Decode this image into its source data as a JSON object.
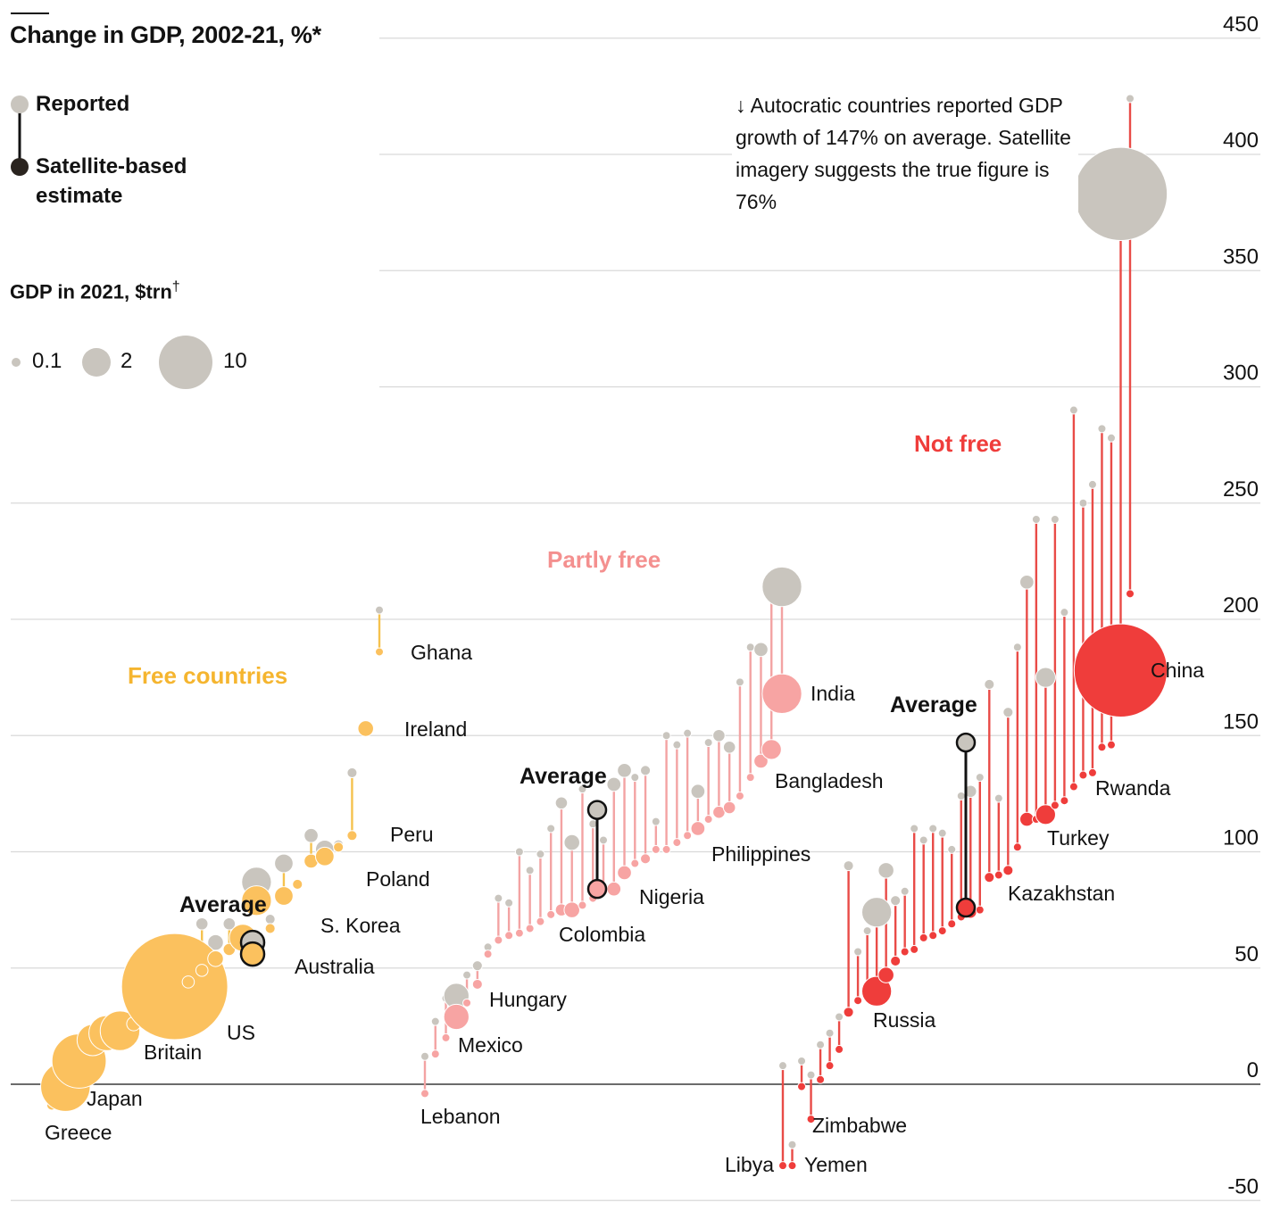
{
  "title": "Change in GDP, 2002-21, %*",
  "legend": {
    "reported_label": "Reported",
    "estimate_label": "Satellite-based estimate",
    "size_title": "GDP in 2021, $trn",
    "size_title_mark": "†",
    "sizes": [
      "0.1",
      "2",
      "10"
    ]
  },
  "annotation": "↓ Autocratic countries reported GDP growth of 147% on average. Satellite imagery suggests the true figure is 76%",
  "groups": {
    "free": "Free countries",
    "partly": "Partly free",
    "notfree": "Not free"
  },
  "average_label": "Average",
  "colors": {
    "reported": "#c9c5be",
    "free": "#fbc15e",
    "free_line": "#f5c24e",
    "partly": "#f7a4a3",
    "partly_line": "#f3a3a3",
    "notfree": "#ef3d3b",
    "notfree_line": "#e94b47",
    "average": "#121212"
  },
  "chart_data": {
    "type": "scatter",
    "ylim": [
      -50,
      450
    ],
    "yticks": [
      "450",
      "400",
      "350",
      "300",
      "250",
      "200",
      "150",
      "100",
      "50",
      "0",
      "-50"
    ],
    "series": [
      {
        "name": "Reported"
      },
      {
        "name": "Satellite-based estimate"
      }
    ],
    "groups": [
      {
        "name": "Free countries",
        "countries": [
          {
            "label": "Greece",
            "gdp": 0.2,
            "reported": -9,
            "estimate": -9
          },
          {
            "label": "Japan",
            "gdp": 5,
            "reported": -1,
            "estimate": -1
          },
          {
            "label": "",
            "gdp": 6,
            "reported": 10,
            "estimate": 10
          },
          {
            "label": "",
            "gdp": 2,
            "reported": 19,
            "estimate": 19
          },
          {
            "label": "",
            "gdp": 2.5,
            "reported": 22,
            "estimate": 22
          },
          {
            "label": "Britain",
            "gdp": 3.2,
            "reported": 23,
            "estimate": 23
          },
          {
            "label": "",
            "gdp": 0.4,
            "reported": 26,
            "estimate": 26
          },
          {
            "label": "",
            "gdp": 1,
            "reported": 29,
            "estimate": 29
          },
          {
            "label": "",
            "gdp": 2,
            "reported": 29,
            "estimate": 29
          },
          {
            "label": "US",
            "gdp": 23,
            "reported": 42,
            "estimate": 42
          },
          {
            "label": "",
            "gdp": 0.3,
            "reported": 44,
            "estimate": 44
          },
          {
            "label": "",
            "gdp": 0.3,
            "reported": 69,
            "estimate": 49
          },
          {
            "label": "",
            "gdp": 0.5,
            "reported": 61,
            "estimate": 54
          },
          {
            "label": "",
            "gdp": 0.3,
            "reported": 69,
            "estimate": 58
          },
          {
            "label": "Australia",
            "gdp": 1.5,
            "reported": 63,
            "estimate": 63
          },
          {
            "label": "S. Korea",
            "gdp": 1.8,
            "reported": 87,
            "estimate": 79
          },
          {
            "label": "",
            "gdp": 0.2,
            "reported": 71,
            "estimate": 67
          },
          {
            "label": "",
            "gdp": 0.7,
            "reported": 95,
            "estimate": 81
          },
          {
            "label": "",
            "gdp": 0.2,
            "reported": 86,
            "estimate": 86
          },
          {
            "label": "",
            "gdp": 0.4,
            "reported": 107,
            "estimate": 96
          },
          {
            "label": "Poland",
            "gdp": 0.7,
            "reported": 101,
            "estimate": 98
          },
          {
            "label": "",
            "gdp": 0.2,
            "reported": 103,
            "estimate": 102
          },
          {
            "label": "Peru",
            "gdp": 0.2,
            "reported": 134,
            "estimate": 107
          },
          {
            "label": "Ireland",
            "gdp": 0.5,
            "reported": 153,
            "estimate": 153
          },
          {
            "label": "Ghana",
            "gdp": 0.08,
            "reported": 204,
            "estimate": 186
          }
        ]
      },
      {
        "name": "Partly free",
        "countries": [
          {
            "label": "Lebanon",
            "gdp": 0.02,
            "reported": 12,
            "estimate": -4
          },
          {
            "label": "",
            "gdp": 0.1,
            "reported": 27,
            "estimate": 13
          },
          {
            "label": "",
            "gdp": 0.05,
            "reported": 37,
            "estimate": 20
          },
          {
            "label": "Mexico",
            "gdp": 1.3,
            "reported": 38,
            "estimate": 29
          },
          {
            "label": "",
            "gdp": 0.1,
            "reported": 47,
            "estimate": 35
          },
          {
            "label": "Hungary",
            "gdp": 0.2,
            "reported": 51,
            "estimate": 43
          },
          {
            "label": "",
            "gdp": 0.1,
            "reported": 59,
            "estimate": 56
          },
          {
            "label": "",
            "gdp": 0.1,
            "reported": 80,
            "estimate": 62
          },
          {
            "label": "",
            "gdp": 0.1,
            "reported": 78,
            "estimate": 64
          },
          {
            "label": "",
            "gdp": 0.1,
            "reported": 100,
            "estimate": 65
          },
          {
            "label": "",
            "gdp": 0.1,
            "reported": 92,
            "estimate": 67
          },
          {
            "label": "",
            "gdp": 0.1,
            "reported": 99,
            "estimate": 70
          },
          {
            "label": "",
            "gdp": 0.1,
            "reported": 110,
            "estimate": 73
          },
          {
            "label": "Colombia",
            "gdp": 0.3,
            "reported": 121,
            "estimate": 75
          },
          {
            "label": "",
            "gdp": 0.5,
            "reported": 104,
            "estimate": 75
          },
          {
            "label": "",
            "gdp": 0.1,
            "reported": 127,
            "estimate": 77
          },
          {
            "label": "",
            "gdp": 0.1,
            "reported": 112,
            "estimate": 80
          },
          {
            "label": "",
            "gdp": 0.1,
            "reported": 105,
            "estimate": 83
          },
          {
            "label": "",
            "gdp": 0.4,
            "reported": 129,
            "estimate": 84
          },
          {
            "label": "Nigeria",
            "gdp": 0.4,
            "reported": 135,
            "estimate": 91
          },
          {
            "label": "",
            "gdp": 0.1,
            "reported": 132,
            "estimate": 95
          },
          {
            "label": "",
            "gdp": 0.2,
            "reported": 135,
            "estimate": 97
          },
          {
            "label": "",
            "gdp": 0.1,
            "reported": 113,
            "estimate": 101
          },
          {
            "label": "",
            "gdp": 0.1,
            "reported": 150,
            "estimate": 101
          },
          {
            "label": "",
            "gdp": 0.1,
            "reported": 146,
            "estimate": 104
          },
          {
            "label": "",
            "gdp": 0.1,
            "reported": 151,
            "estimate": 107
          },
          {
            "label": "Philippines",
            "gdp": 0.4,
            "reported": 126,
            "estimate": 110
          },
          {
            "label": "",
            "gdp": 0.1,
            "reported": 147,
            "estimate": 114
          },
          {
            "label": "",
            "gdp": 0.3,
            "reported": 150,
            "estimate": 117
          },
          {
            "label": "",
            "gdp": 0.3,
            "reported": 145,
            "estimate": 119
          },
          {
            "label": "",
            "gdp": 0.1,
            "reported": 173,
            "estimate": 124
          },
          {
            "label": "",
            "gdp": 0.1,
            "reported": 188,
            "estimate": 132
          },
          {
            "label": "Bangladesh",
            "gdp": 0.4,
            "reported": 187,
            "estimate": 139
          },
          {
            "label": "",
            "gdp": 0.8,
            "reported": 214,
            "estimate": 144
          },
          {
            "label": "India",
            "gdp": 3.2,
            "reported": 214,
            "estimate": 168
          }
        ]
      },
      {
        "name": "Not free",
        "countries": [
          {
            "label": "Libya",
            "gdp": 0.04,
            "reported": 8,
            "estimate": -35
          },
          {
            "label": "Yemen",
            "gdp": 0.02,
            "reported": -26,
            "estimate": -35
          },
          {
            "label": "",
            "gdp": 0.05,
            "reported": 10,
            "estimate": -1
          },
          {
            "label": "Zimbabwe",
            "gdp": 0.03,
            "reported": 4,
            "estimate": -15
          },
          {
            "label": "",
            "gdp": 0.1,
            "reported": 17,
            "estimate": 2
          },
          {
            "label": "",
            "gdp": 0.1,
            "reported": 22,
            "estimate": 8
          },
          {
            "label": "",
            "gdp": 0.1,
            "reported": 29,
            "estimate": 15
          },
          {
            "label": "",
            "gdp": 0.2,
            "reported": 94,
            "estimate": 31
          },
          {
            "label": "",
            "gdp": 0.1,
            "reported": 57,
            "estimate": 36
          },
          {
            "label": "",
            "gdp": 0.1,
            "reported": 66,
            "estimate": 40
          },
          {
            "label": "Russia",
            "gdp": 1.8,
            "reported": 74,
            "estimate": 40
          },
          {
            "label": "",
            "gdp": 0.5,
            "reported": 92,
            "estimate": 47
          },
          {
            "label": "",
            "gdp": 0.2,
            "reported": 79,
            "estimate": 53
          },
          {
            "label": "",
            "gdp": 0.1,
            "reported": 83,
            "estimate": 57
          },
          {
            "label": "",
            "gdp": 0.1,
            "reported": 110,
            "estimate": 58
          },
          {
            "label": "",
            "gdp": 0.1,
            "reported": 105,
            "estimate": 63
          },
          {
            "label": "",
            "gdp": 0.1,
            "reported": 110,
            "estimate": 64
          },
          {
            "label": "",
            "gdp": 0.1,
            "reported": 108,
            "estimate": 66
          },
          {
            "label": "",
            "gdp": 0.1,
            "reported": 101,
            "estimate": 69
          },
          {
            "label": "",
            "gdp": 0.1,
            "reported": 124,
            "estimate": 72
          },
          {
            "label": "",
            "gdp": 0.3,
            "reported": 126,
            "estimate": 74
          },
          {
            "label": "",
            "gdp": 0.1,
            "reported": 132,
            "estimate": 75
          },
          {
            "label": "Kazakhstan",
            "gdp": 0.2,
            "reported": 172,
            "estimate": 89
          },
          {
            "label": "",
            "gdp": 0.1,
            "reported": 123,
            "estimate": 90
          },
          {
            "label": "",
            "gdp": 0.2,
            "reported": 160,
            "estimate": 92
          },
          {
            "label": "",
            "gdp": 0.1,
            "reported": 188,
            "estimate": 102
          },
          {
            "label": "",
            "gdp": 0.4,
            "reported": 216,
            "estimate": 114
          },
          {
            "label": "",
            "gdp": 0.1,
            "reported": 243,
            "estimate": 114
          },
          {
            "label": "Turkey",
            "gdp": 0.8,
            "reported": 175,
            "estimate": 116
          },
          {
            "label": "",
            "gdp": 0.1,
            "reported": 243,
            "estimate": 120
          },
          {
            "label": "",
            "gdp": 0.1,
            "reported": 203,
            "estimate": 122
          },
          {
            "label": "",
            "gdp": 0.1,
            "reported": 290,
            "estimate": 128
          },
          {
            "label": "",
            "gdp": 0.1,
            "reported": 250,
            "estimate": 133
          },
          {
            "label": "Rwanda",
            "gdp": 0.02,
            "reported": 258,
            "estimate": 134
          },
          {
            "label": "",
            "gdp": 0.1,
            "reported": 282,
            "estimate": 145
          },
          {
            "label": "",
            "gdp": 0.1,
            "reported": 278,
            "estimate": 146
          },
          {
            "label": "China",
            "gdp": 17.7,
            "reported": 383,
            "estimate": 178
          },
          {
            "label": "",
            "gdp": 0.08,
            "reported": 424,
            "estimate": 211
          }
        ]
      }
    ],
    "averages": [
      {
        "label": "Average",
        "group": "Free countries",
        "reported": 61,
        "estimate": 56
      },
      {
        "label": "Average",
        "group": "Partly free",
        "reported": 118,
        "estimate": 84
      },
      {
        "label": "Average",
        "group": "Not free",
        "reported": 147,
        "estimate": 76
      }
    ]
  }
}
